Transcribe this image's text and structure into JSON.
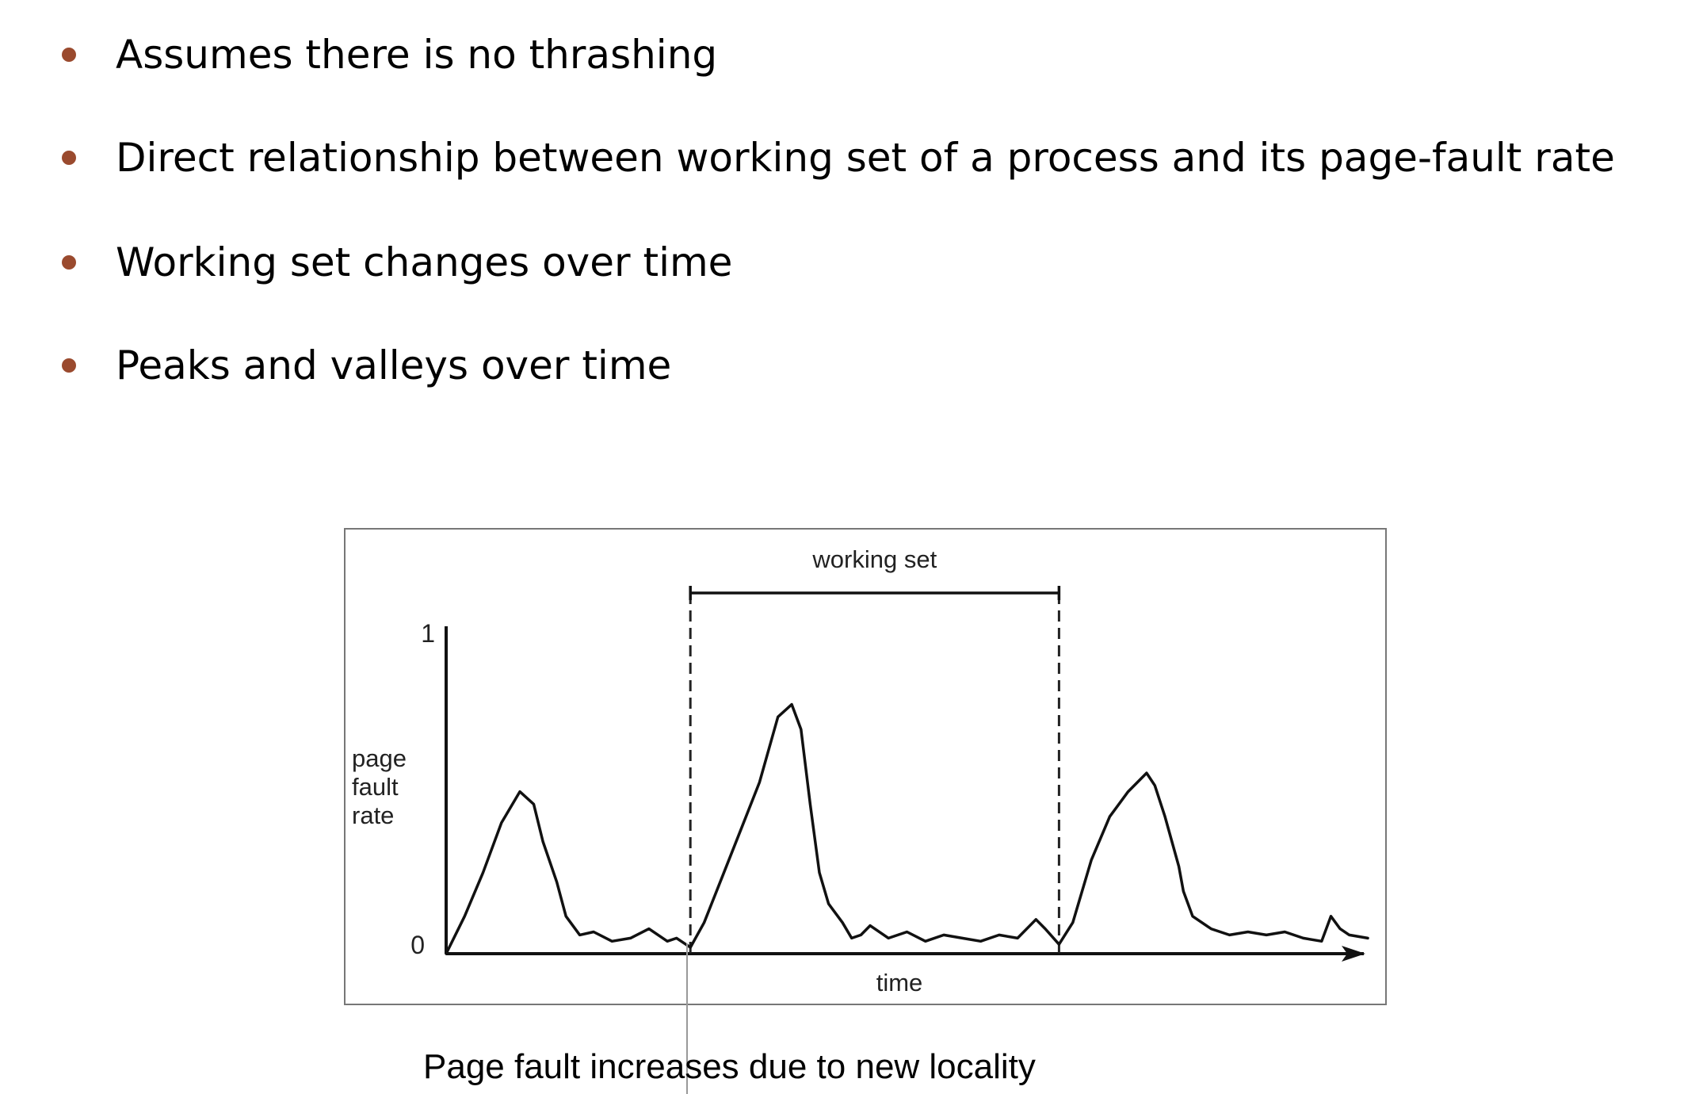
{
  "bullets": [
    {
      "text": "Assumes there is no thrashing"
    },
    {
      "text": "Direct relationship between working set of a process and its page-fault rate"
    },
    {
      "text": "Working set changes over time"
    },
    {
      "text": "Peaks and valleys over time"
    }
  ],
  "bullet_color": "#9a4a2e",
  "caption": "Page fault increases due to new locality",
  "chart_data": {
    "type": "line",
    "title": "",
    "xlabel": "time",
    "ylabel": "page fault rate",
    "ylabel_lines": [
      "page",
      "fault",
      "rate"
    ],
    "ytick_labels": [
      "0",
      "1"
    ],
    "ylim": [
      0,
      1
    ],
    "xlim": [
      0,
      100
    ],
    "grid": false,
    "annotation": {
      "label": "working set",
      "x_start": 26.5,
      "x_end": 66.5
    },
    "series": [
      {
        "x": [
          0,
          2,
          4,
          6,
          8,
          9.5,
          10.5,
          12,
          13,
          14.5,
          16,
          18,
          20,
          22,
          24,
          25,
          26.5,
          28,
          30,
          32,
          34,
          36,
          37.5,
          38.5,
          39.5,
          40.5,
          41.5,
          43,
          44,
          45,
          46,
          48,
          50,
          52,
          54,
          56,
          58,
          60,
          62,
          64,
          65,
          66.5,
          68,
          70,
          72,
          74,
          76,
          76.9,
          78,
          79.5,
          80,
          81,
          83,
          85,
          87,
          89,
          91,
          93,
          95,
          96,
          97,
          98,
          100
        ],
        "y": [
          0,
          0.12,
          0.26,
          0.42,
          0.52,
          0.48,
          0.36,
          0.23,
          0.12,
          0.06,
          0.07,
          0.04,
          0.05,
          0.08,
          0.04,
          0.05,
          0.02,
          0.1,
          0.25,
          0.4,
          0.55,
          0.76,
          0.8,
          0.72,
          0.48,
          0.26,
          0.16,
          0.1,
          0.05,
          0.06,
          0.09,
          0.05,
          0.07,
          0.04,
          0.06,
          0.05,
          0.04,
          0.06,
          0.05,
          0.11,
          0.08,
          0.03,
          0.1,
          0.3,
          0.44,
          0.52,
          0.58,
          0.54,
          0.44,
          0.28,
          0.2,
          0.12,
          0.08,
          0.06,
          0.07,
          0.06,
          0.07,
          0.05,
          0.04,
          0.12,
          0.08,
          0.06,
          0.05
        ]
      }
    ]
  }
}
